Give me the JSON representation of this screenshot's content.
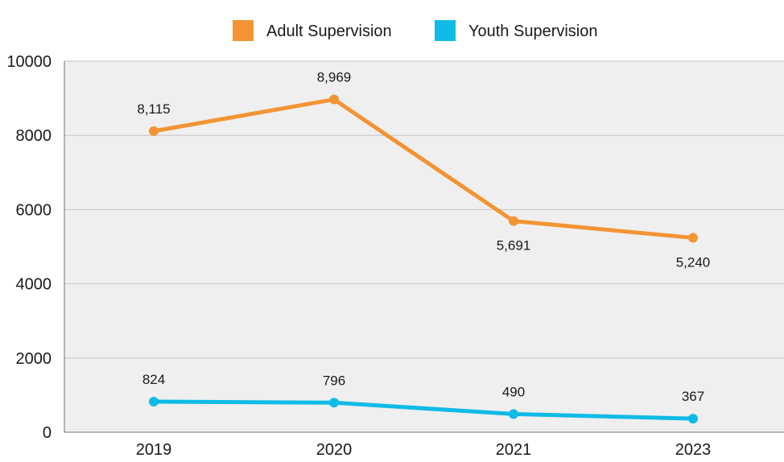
{
  "chart_data": {
    "type": "line",
    "title": "",
    "xlabel": "",
    "ylabel": "",
    "categories": [
      "2019",
      "2020",
      "2021",
      "2023"
    ],
    "ylim": [
      0,
      10000
    ],
    "yticks": [
      0,
      2000,
      4000,
      6000,
      8000,
      10000
    ],
    "grid": true,
    "legend_position": "top-center",
    "background": "#efefef",
    "series": [
      {
        "name": "Adult Supervision",
        "color": "#f39433",
        "values": [
          8115,
          8969,
          5691,
          5240
        ],
        "labels": [
          "8,115",
          "8,969",
          "5,691",
          "5,240"
        ],
        "label_side": [
          "above",
          "above",
          "below",
          "below"
        ]
      },
      {
        "name": "Youth Supervision",
        "color": "#0fbbe6",
        "values": [
          824,
          796,
          490,
          367
        ],
        "labels": [
          "824",
          "796",
          "490",
          "367"
        ],
        "label_side": [
          "above",
          "above",
          "above",
          "above"
        ]
      }
    ]
  }
}
